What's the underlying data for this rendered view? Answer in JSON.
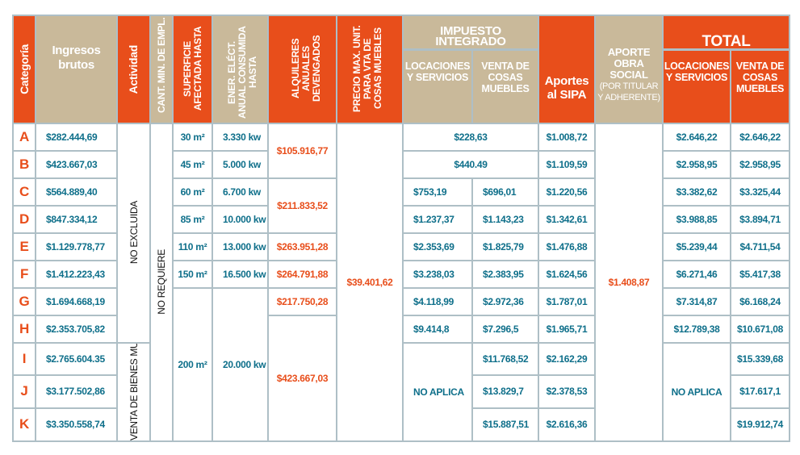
{
  "headers": {
    "categoria": "Categoría",
    "ingresos": "Ingresos brutos",
    "actividad": "Actividad",
    "empleados": "CANT. MIN. DE EMPL.",
    "superficie": "SUPERFICIE AFECTADA HASTA",
    "energia": "ENER. ELÉCT. ANUAL CONSUMIDA HASTA",
    "alquileres": "ALQUILERES ANUALES DEVENGADOS",
    "precio": "PRECIO MAX. UNIT. PARA VTA DE COSAS MUEBLES",
    "impuesto": "IMPUESTO INTEGRADO",
    "impuesto_loc": "LOCACIONES Y SERVICIOS",
    "impuesto_venta": "VENTA DE COSAS MUEBLES",
    "sipa": "Aportes al SIPA",
    "obra_social": "APORTE OBRA SOCIAL",
    "obra_social_note": "(POR TITULAR Y ADHERENTE)",
    "total": "TOTAL",
    "total_loc": "LOCACIONES Y SERVICIOS",
    "total_venta": "VENTA DE COSAS MUEBLES"
  },
  "colors": {
    "orange": "#E84E1B",
    "tan": "#C9B99A",
    "blue_text": "#0E6F8A",
    "grid": "#AEBFC6"
  },
  "rows": [
    {
      "cat": "A",
      "ingresos": "$282.444,69",
      "superficie": "30 m²",
      "energia": "3.330 kw",
      "impuesto_unificado": "$228,63",
      "sipa": "$1.008,72",
      "total_loc": "$2.646,22",
      "total_venta": "$2.646,22"
    },
    {
      "cat": "B",
      "ingresos": "$423.667,03",
      "superficie": "45 m²",
      "energia": "5.000 kw",
      "impuesto_unificado": "$440.49",
      "sipa": "$1.109,59",
      "total_loc": "$2.958,95",
      "total_venta": "$2.958,95"
    },
    {
      "cat": "C",
      "ingresos": "$564.889,40",
      "superficie": "60 m²",
      "energia": "6.700 kw",
      "imp_loc": "$753,19",
      "imp_venta": "$696,01",
      "sipa": "$1.220,56",
      "total_loc": "$3.382,62",
      "total_venta": "$3.325,44"
    },
    {
      "cat": "D",
      "ingresos": "$847.334,12",
      "superficie": "85 m²",
      "energia": "10.000 kw",
      "imp_loc": "$1.237,37",
      "imp_venta": "$1.143,23",
      "sipa": "$1.342,61",
      "total_loc": "$3.988,85",
      "total_venta": "$3.894,71"
    },
    {
      "cat": "E",
      "ingresos": "$1.129.778,77",
      "superficie": "110 m²",
      "energia": "13.000 kw",
      "alquileres": "$263.951,28",
      "imp_loc": "$2.353,69",
      "imp_venta": "$1.825,79",
      "sipa": "$1.476,88",
      "total_loc": "$5.239,44",
      "total_venta": "$4.711,54"
    },
    {
      "cat": "F",
      "ingresos": "$1.412.223,43",
      "superficie": "150 m²",
      "energia": "16.500 kw",
      "alquileres": "$264.791,88",
      "imp_loc": "$3.238,03",
      "imp_venta": "$2.383,95",
      "sipa": "$1.624,56",
      "total_loc": "$6.271,46",
      "total_venta": "$5.417,38"
    },
    {
      "cat": "G",
      "ingresos": "$1.694.668,19",
      "alquileres": "$217.750,28",
      "imp_loc": "$4.118,99",
      "imp_venta": "$2.972,36",
      "sipa": "$1.787,01",
      "total_loc": "$7.314,87",
      "total_venta": "$6.168,24"
    },
    {
      "cat": "H",
      "ingresos": "$2.353.705,82",
      "imp_loc": "$9.414,8",
      "imp_venta": "$7.296,5",
      "sipa": "$1.965,71",
      "total_loc": "$12.789,38",
      "total_venta": "$10.671,08"
    },
    {
      "cat": "I",
      "ingresos": "$2.765.604.35",
      "imp_venta": "$11.768,52",
      "sipa": "$2.162,29",
      "total_venta": "$15.339,68"
    },
    {
      "cat": "J",
      "ingresos": "$3.177.502,86",
      "imp_venta": "$13.829,7",
      "sipa": "$2.378,53",
      "total_venta": "$17.617,1"
    },
    {
      "cat": "K",
      "ingresos": "$3.350.558,74",
      "imp_venta": "$15.887,51",
      "sipa": "$2.616,36",
      "total_venta": "$19.912,74"
    }
  ],
  "merged": {
    "actividad": [
      {
        "value": "NO EXCLUIDA",
        "categories": [
          "A",
          "B",
          "C",
          "D",
          "E",
          "F",
          "G",
          "H"
        ]
      },
      {
        "value": "VENTA DE BIENES MUEBLES",
        "categories": [
          "I",
          "J",
          "K"
        ]
      }
    ],
    "empleados": [
      {
        "value": "NO REQUIERE",
        "categories": [
          "A",
          "B",
          "C",
          "D",
          "E",
          "F",
          "G",
          "H",
          "I",
          "J",
          "K"
        ]
      }
    ],
    "superficie": [
      {
        "value": "200 m²",
        "categories": [
          "G",
          "H",
          "I",
          "J",
          "K"
        ]
      }
    ],
    "energia": [
      {
        "value": "20.000 kw",
        "categories": [
          "G",
          "H",
          "I",
          "J",
          "K"
        ]
      }
    ],
    "alquileres": [
      {
        "value": "$105.916,77",
        "categories": [
          "A",
          "B"
        ]
      },
      {
        "value": "$211.833,52",
        "categories": [
          "C",
          "D"
        ]
      },
      {
        "value": "$423.667,03",
        "categories": [
          "H",
          "I",
          "J",
          "K"
        ]
      }
    ],
    "precio": [
      {
        "value": "$39.401,62",
        "categories": [
          "A",
          "B",
          "C",
          "D",
          "E",
          "F",
          "G",
          "H",
          "I",
          "J",
          "K"
        ]
      }
    ],
    "imp_loc": [
      {
        "value": "NO APLICA",
        "categories": [
          "I",
          "J",
          "K"
        ]
      }
    ],
    "obra_social": [
      {
        "value": "$1.408,87",
        "categories": [
          "A",
          "B",
          "C",
          "D",
          "E",
          "F",
          "G",
          "H",
          "I",
          "J",
          "K"
        ]
      }
    ],
    "total_loc": [
      {
        "value": "NO APLICA",
        "categories": [
          "I",
          "J",
          "K"
        ]
      }
    ]
  }
}
